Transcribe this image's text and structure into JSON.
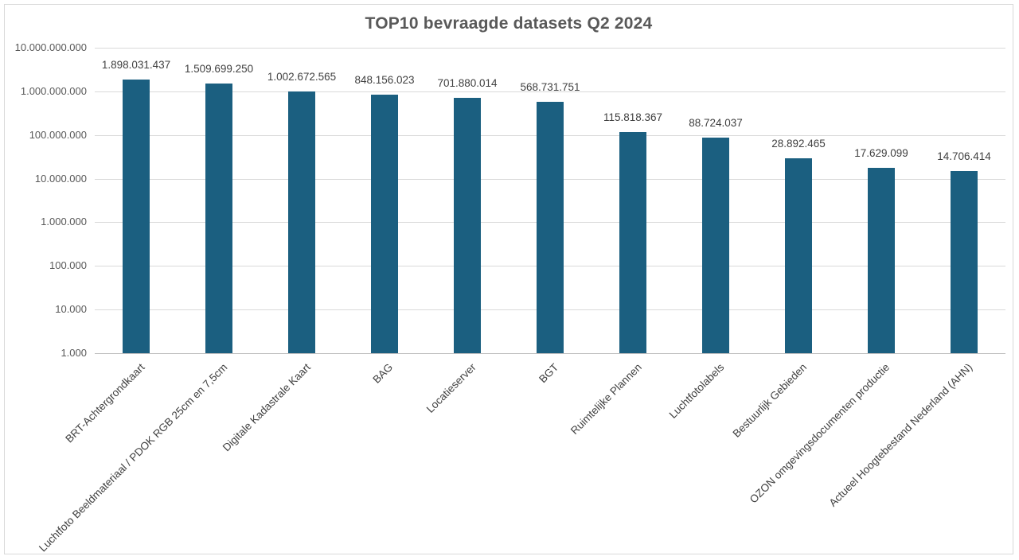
{
  "chart_data": {
    "type": "bar",
    "title": "TOP10 bevraagde datasets Q2 2024",
    "xlabel": "",
    "ylabel": "",
    "scale": "log10",
    "ylim": [
      1000,
      10000000000
    ],
    "grid": true,
    "legend": "none",
    "y_tick_labels": [
      "10.000.000.000",
      "1.000.000.000",
      "100.000.000",
      "10.000.000",
      "1.000.000",
      "100.000",
      "10.000",
      "1.000"
    ],
    "categories": [
      "BRT-Achtergrondkaart",
      "Luchtfoto Beeldmateriaal / PDOK RGB 25cm en 7,5cm",
      "Digitale Kadastrale Kaart",
      "BAG",
      "Locatieserver",
      "BGT",
      "Ruimtelijke Plannen",
      "Luchtfotolabels",
      "Bestuurlijk Gebieden",
      "OZON omgevingsdocumenten productie",
      "Actueel Hoogtebestand Nederland (AHN)"
    ],
    "values": [
      1898031437,
      1509699250,
      1002672565,
      848156023,
      701880014,
      568731751,
      115818367,
      88724037,
      28892465,
      17629099,
      14706414
    ],
    "value_labels": [
      "1.898.031.437",
      "1.509.699.250",
      "1.002.672.565",
      "848.156.023",
      "701.880.014",
      "568.731.751",
      "115.818.367",
      "88.724.037",
      "28.892.465",
      "17.629.099",
      "14.706.414"
    ],
    "colors": {
      "bar_color": "#1b5f80",
      "gridline_color": "#d9d9d9",
      "axis_line_color": "#bfbfbf",
      "title_color": "#595959",
      "tick_label_color": "#595959",
      "data_label_color": "#404040"
    }
  }
}
